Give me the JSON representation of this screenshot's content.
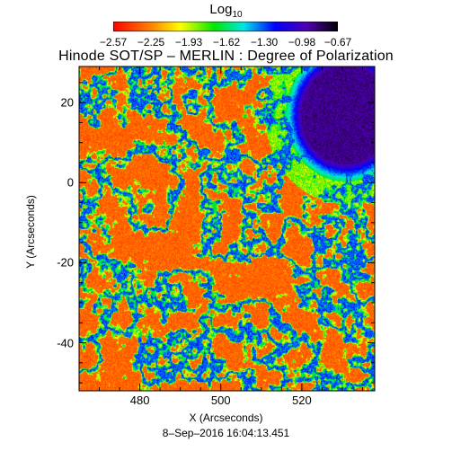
{
  "chart_data": {
    "type": "heatmap",
    "title": "Hinode SOT/SP – MERLIN : Degree of Polarization",
    "xlabel": "X (Arcseconds)",
    "ylabel": "Y (Arcseconds)",
    "timestamp": "8–Sep–2016 16:04:13.451",
    "xlim": [
      465,
      538
    ],
    "ylim": [
      -52,
      29
    ],
    "x_ticks": [
      480,
      500,
      520
    ],
    "y_ticks": [
      20,
      0,
      -20,
      -40
    ],
    "colorbar": {
      "title": "Log",
      "title_sub": "10",
      "colormap": "rainbow (red → yellow → green → cyan → blue → purple → black)",
      "range": [
        -2.57,
        -0.67
      ],
      "tick_labels": [
        "−2.57",
        "−2.25",
        "−1.93",
        "−1.62",
        "−1.30",
        "−0.98",
        "−0.67"
      ]
    },
    "features": {
      "sunspot_center": [
        531,
        17
      ],
      "sunspot_radius": 11
    }
  }
}
